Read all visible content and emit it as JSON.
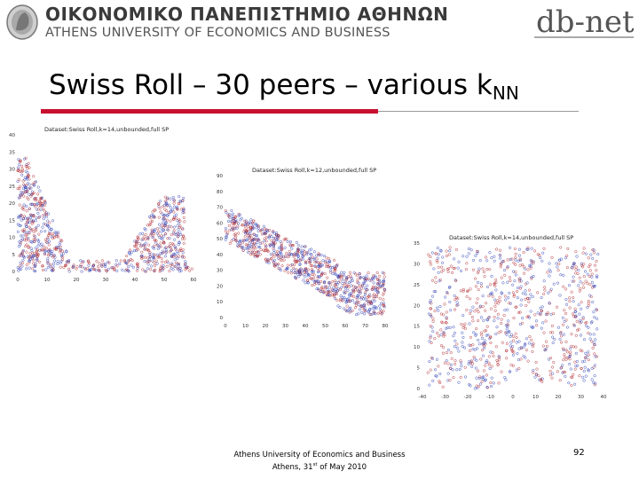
{
  "header": {
    "university_greek": "ΟΙΚΟΝΟΜΙΚΟ ΠΑΝΕΠΙΣΤΗΜΙΟ ΑΘΗΝΩΝ",
    "university_english": "ATHENS UNIVERSITY OF ECONOMICS AND BUSINESS",
    "logo_text": "db-net"
  },
  "slide": {
    "title_main": "Swiss Roll – 30 peers – various k",
    "title_sub": "NN",
    "page_number": "92"
  },
  "footer": {
    "line1": "Athens University of Economics and Business",
    "line2_prefix": "Athens, 31",
    "line2_sup": "st",
    "line2_suffix": " of May 2010"
  },
  "colors": {
    "accent_red": "#c8102e",
    "series_blue": "#2b3fb5",
    "series_red": "#b0282e"
  },
  "chart_data": [
    {
      "type": "scatter",
      "title": "Dataset:Swiss Roll,k=14,unbounded,full SP",
      "xlim": [
        0,
        60
      ],
      "ylim": [
        0,
        40
      ],
      "x_ticks": [
        "0",
        "10",
        "20",
        "30",
        "40",
        "50",
        "60"
      ],
      "y_ticks": [
        "0",
        "5",
        "10",
        "15",
        "20",
        "25",
        "30",
        "35",
        "40"
      ],
      "shape": "u",
      "series": [
        {
          "color": "blue"
        },
        {
          "color": "red"
        }
      ]
    },
    {
      "type": "scatter",
      "title": "Dataset:Swiss Roll,k=12,unbounded,full SP",
      "xlim": [
        0,
        80
      ],
      "ylim": [
        0,
        90
      ],
      "x_ticks": [
        "0",
        "10",
        "20",
        "30",
        "40",
        "50",
        "60",
        "70",
        "80"
      ],
      "y_ticks": [
        "0",
        "10",
        "20",
        "30",
        "40",
        "50",
        "60",
        "70",
        "80",
        "90"
      ],
      "shape": "band",
      "series": [
        {
          "color": "blue"
        },
        {
          "color": "red"
        }
      ]
    },
    {
      "type": "scatter",
      "title": "Dataset:Swiss Roll,k=14,unbounded,full SP",
      "xlim": [
        -40,
        40
      ],
      "ylim": [
        0,
        35
      ],
      "x_ticks": [
        "-40",
        "-30",
        "-20",
        "-10",
        "0",
        "10",
        "20",
        "30",
        "40"
      ],
      "y_ticks": [
        "0",
        "5",
        "10",
        "15",
        "20",
        "25",
        "30",
        "35"
      ],
      "shape": "square",
      "series": [
        {
          "color": "blue"
        },
        {
          "color": "red"
        }
      ]
    }
  ]
}
